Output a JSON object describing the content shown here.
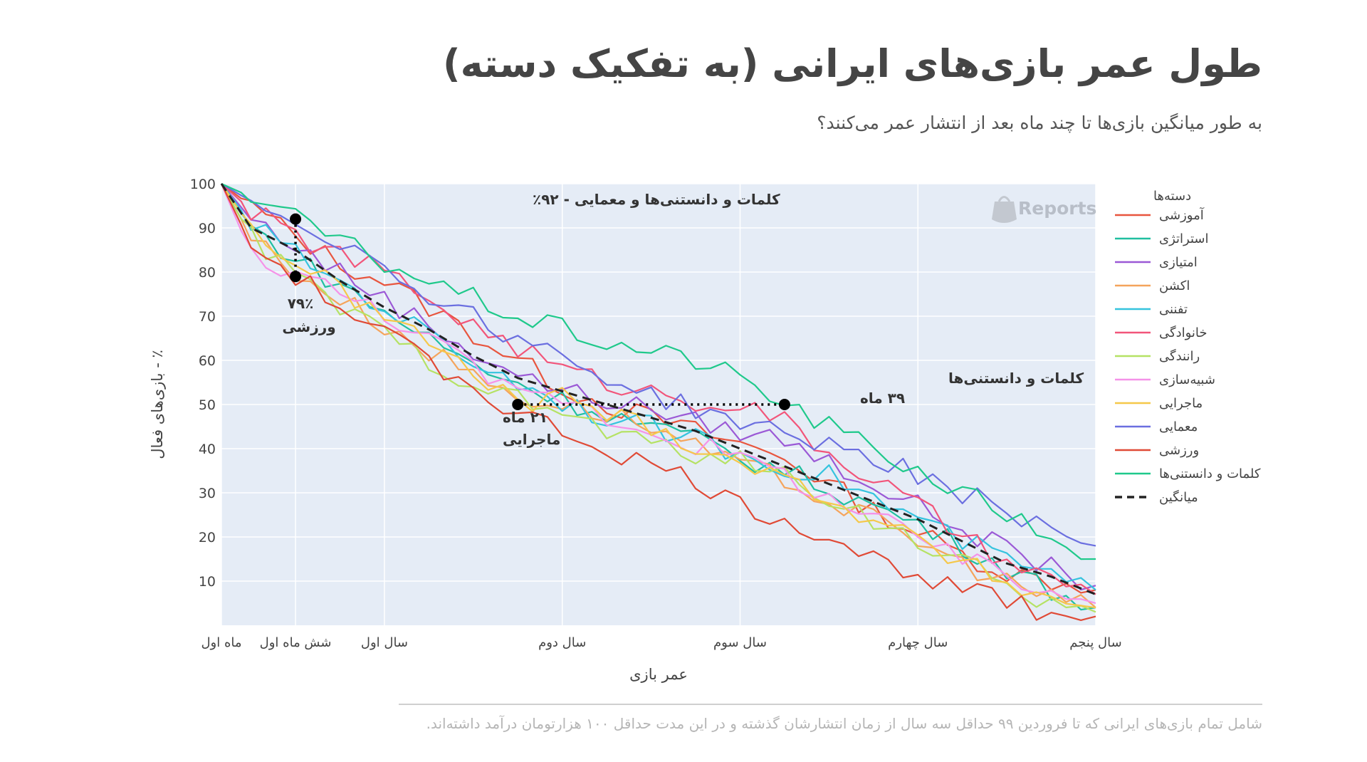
{
  "title": "طول عمر بازی‌های ایرانی (به تفکیک دسته)",
  "subtitle": "به طور میانگین بازی‌ها تا چند ماه بعد از انتشار عمر می‌کنند؟",
  "footnote": "شامل تمام بازی‌های ایرانی که تا فروردین ۹۹ حداقل سه سال از زمان انتشارشان گذشته و در این مدت حداقل ۱۰۰ هزارتومان درآمد داشته‌اند.",
  "watermark": "Reports",
  "colors": {
    "plot_bg": "#e5ecf6",
    "grid": "#ffffff",
    "text": "#444444"
  },
  "chart_data": {
    "type": "line",
    "xlabel": "عمر بازی",
    "ylabel": "٪ - بازی‌های فعال",
    "xlim": [
      1,
      60
    ],
    "ylim": [
      0,
      100
    ],
    "yticks": [
      10,
      20,
      30,
      40,
      50,
      60,
      70,
      80,
      90,
      100
    ],
    "xticks": [
      {
        "value": 1,
        "label": "ماه اول"
      },
      {
        "value": 6,
        "label": "شش ماه اول"
      },
      {
        "value": 12,
        "label": "سال اول"
      },
      {
        "value": 24,
        "label": "سال دوم"
      },
      {
        "value": 36,
        "label": "سال سوم"
      },
      {
        "value": 48,
        "label": "سال چهارم"
      },
      {
        "value": 60,
        "label": "سال پنجم"
      }
    ],
    "legend_title": "دسته‌ها",
    "legend_position": "right",
    "grid": true,
    "series": [
      {
        "name": "آموزشی",
        "color": "#e8553e",
        "x": [
          1,
          3,
          6,
          9,
          12,
          15,
          18,
          21,
          24,
          27,
          30,
          33,
          36,
          39,
          42,
          45,
          48,
          51,
          54,
          57,
          60
        ],
        "y": [
          100,
          95,
          88,
          82,
          78,
          72,
          66,
          60,
          54,
          50,
          47,
          44,
          41,
          38,
          32,
          26,
          21,
          16,
          12,
          10,
          8
        ]
      },
      {
        "name": "استراتژی",
        "color": "#20bfa0",
        "x": [
          1,
          3,
          6,
          9,
          12,
          15,
          18,
          21,
          24,
          27,
          30,
          33,
          36,
          39,
          42,
          45,
          48,
          51,
          54,
          57,
          60
        ],
        "y": [
          100,
          90,
          83,
          77,
          71,
          65,
          59,
          55,
          51,
          48,
          45,
          42,
          38,
          35,
          31,
          27,
          23,
          18,
          13,
          8,
          4
        ]
      },
      {
        "name": "امتیازی",
        "color": "#9b59d6",
        "x": [
          1,
          3,
          6,
          9,
          12,
          15,
          18,
          21,
          24,
          27,
          30,
          33,
          36,
          39,
          42,
          45,
          48,
          51,
          54,
          57,
          60
        ],
        "y": [
          100,
          92,
          86,
          80,
          74,
          68,
          62,
          57,
          53,
          51,
          49,
          46,
          44,
          42,
          37,
          32,
          27,
          22,
          17,
          13,
          9
        ]
      },
      {
        "name": "اکشن",
        "color": "#f5a45c",
        "x": [
          1,
          3,
          6,
          9,
          12,
          15,
          18,
          21,
          24,
          27,
          30,
          33,
          36,
          39,
          42,
          45,
          48,
          51,
          54,
          57,
          60
        ],
        "y": [
          100,
          88,
          80,
          74,
          68,
          62,
          57,
          52,
          50,
          48,
          45,
          40,
          36,
          33,
          28,
          24,
          19,
          14,
          10,
          6,
          4
        ]
      },
      {
        "name": "تفننی",
        "color": "#35c3de",
        "x": [
          1,
          3,
          6,
          9,
          12,
          15,
          18,
          21,
          24,
          27,
          30,
          33,
          36,
          39,
          42,
          45,
          48,
          51,
          54,
          57,
          60
        ],
        "y": [
          100,
          91,
          84,
          78,
          72,
          66,
          60,
          55,
          51,
          47,
          45,
          42,
          39,
          36,
          34,
          29,
          24,
          19,
          15,
          11,
          8
        ]
      },
      {
        "name": "خانوادگی",
        "color": "#f2557a",
        "x": [
          1,
          3,
          6,
          9,
          12,
          15,
          18,
          21,
          24,
          27,
          30,
          33,
          36,
          39,
          42,
          45,
          48,
          51,
          54,
          57,
          60
        ],
        "y": [
          100,
          94,
          88,
          84,
          80,
          74,
          68,
          63,
          58,
          55,
          53,
          51,
          50,
          46,
          39,
          33,
          27,
          20,
          14,
          10,
          7
        ]
      },
      {
        "name": "رانندگی",
        "color": "#b5e264",
        "x": [
          1,
          3,
          6,
          9,
          12,
          15,
          18,
          21,
          24,
          27,
          30,
          33,
          36,
          39,
          42,
          45,
          48,
          51,
          54,
          57,
          60
        ],
        "y": [
          100,
          88,
          79,
          72,
          66,
          60,
          55,
          51,
          48,
          44,
          41,
          39,
          37,
          34,
          29,
          24,
          19,
          14,
          9,
          5,
          3
        ]
      },
      {
        "name": "شبیه‌سازی",
        "color": "#f592e8",
        "x": [
          1,
          3,
          6,
          9,
          12,
          15,
          18,
          21,
          24,
          27,
          30,
          33,
          36,
          39,
          42,
          45,
          48,
          51,
          54,
          57,
          60
        ],
        "y": [
          100,
          84,
          80,
          75,
          71,
          65,
          58,
          52,
          52,
          47,
          44,
          41,
          38,
          34,
          29,
          24,
          20,
          15,
          11,
          7,
          5
        ]
      },
      {
        "name": "ماجرایی",
        "color": "#f5c84a",
        "x": [
          1,
          3,
          6,
          9,
          12,
          15,
          18,
          21,
          24,
          27,
          30,
          33,
          36,
          39,
          42,
          45,
          48,
          51,
          54,
          57,
          60
        ],
        "y": [
          100,
          90,
          82,
          76,
          70,
          64,
          57,
          50,
          52,
          48,
          45,
          41,
          37,
          33,
          29,
          24,
          19,
          14,
          10,
          6,
          4
        ]
      },
      {
        "name": "معمایی",
        "color": "#6b6fe0",
        "x": [
          1,
          3,
          6,
          9,
          12,
          15,
          18,
          21,
          24,
          27,
          30,
          33,
          36,
          39,
          42,
          45,
          48,
          51,
          54,
          57,
          60
        ],
        "y": [
          100,
          96,
          92,
          87,
          81,
          75,
          70,
          65,
          61,
          56,
          52,
          49,
          46,
          43,
          41,
          38,
          34,
          30,
          26,
          22,
          18
        ]
      },
      {
        "name": "ورزشی",
        "color": "#e04a36",
        "x": [
          1,
          3,
          6,
          9,
          12,
          15,
          18,
          21,
          24,
          27,
          30,
          33,
          36,
          39,
          42,
          45,
          48,
          51,
          54,
          57,
          60
        ],
        "y": [
          100,
          86,
          79,
          72,
          66,
          60,
          54,
          48,
          44,
          40,
          36,
          33,
          27,
          24,
          20,
          15,
          12,
          8,
          5,
          3,
          2
        ]
      },
      {
        "name": "کلمات و دانستنی‌ها",
        "color": "#1fc98b",
        "x": [
          1,
          3,
          6,
          9,
          12,
          15,
          18,
          21,
          24,
          27,
          30,
          33,
          36,
          39,
          42,
          45,
          48,
          51,
          54,
          57,
          60
        ],
        "y": [
          100,
          97,
          92,
          87,
          82,
          78,
          74,
          70,
          67,
          64,
          62,
          60,
          56,
          50,
          45,
          40,
          35,
          30,
          25,
          20,
          15
        ]
      },
      {
        "name": "میانگین",
        "color": "#222222",
        "dash": true,
        "x": [
          1,
          3,
          6,
          9,
          12,
          15,
          18,
          21,
          24,
          27,
          30,
          33,
          36,
          39,
          42,
          45,
          48,
          51,
          54,
          57,
          60
        ],
        "y": [
          100,
          90,
          85,
          78,
          72,
          67,
          61,
          56,
          53,
          50,
          47,
          44,
          40,
          36,
          32,
          28,
          24,
          19,
          14,
          11,
          7
        ]
      }
    ],
    "annotations": [
      {
        "text": "کلمات و دانستنی‌ها و معمایی - ۹۲٪"
      },
      {
        "text_lines": [
          "۷۹٪",
          "ورزشی"
        ]
      },
      {
        "text_lines": [
          "۲۱ ماه",
          "ماجرایی"
        ]
      },
      {
        "text_lines": [
          "کلمات و دانستنی‌ها",
          "۳۹ ماه"
        ]
      }
    ],
    "markers": [
      {
        "x": 6,
        "y": 92
      },
      {
        "x": 6,
        "y": 79
      },
      {
        "x": 21,
        "y": 50
      },
      {
        "x": 39,
        "y": 50
      }
    ]
  }
}
